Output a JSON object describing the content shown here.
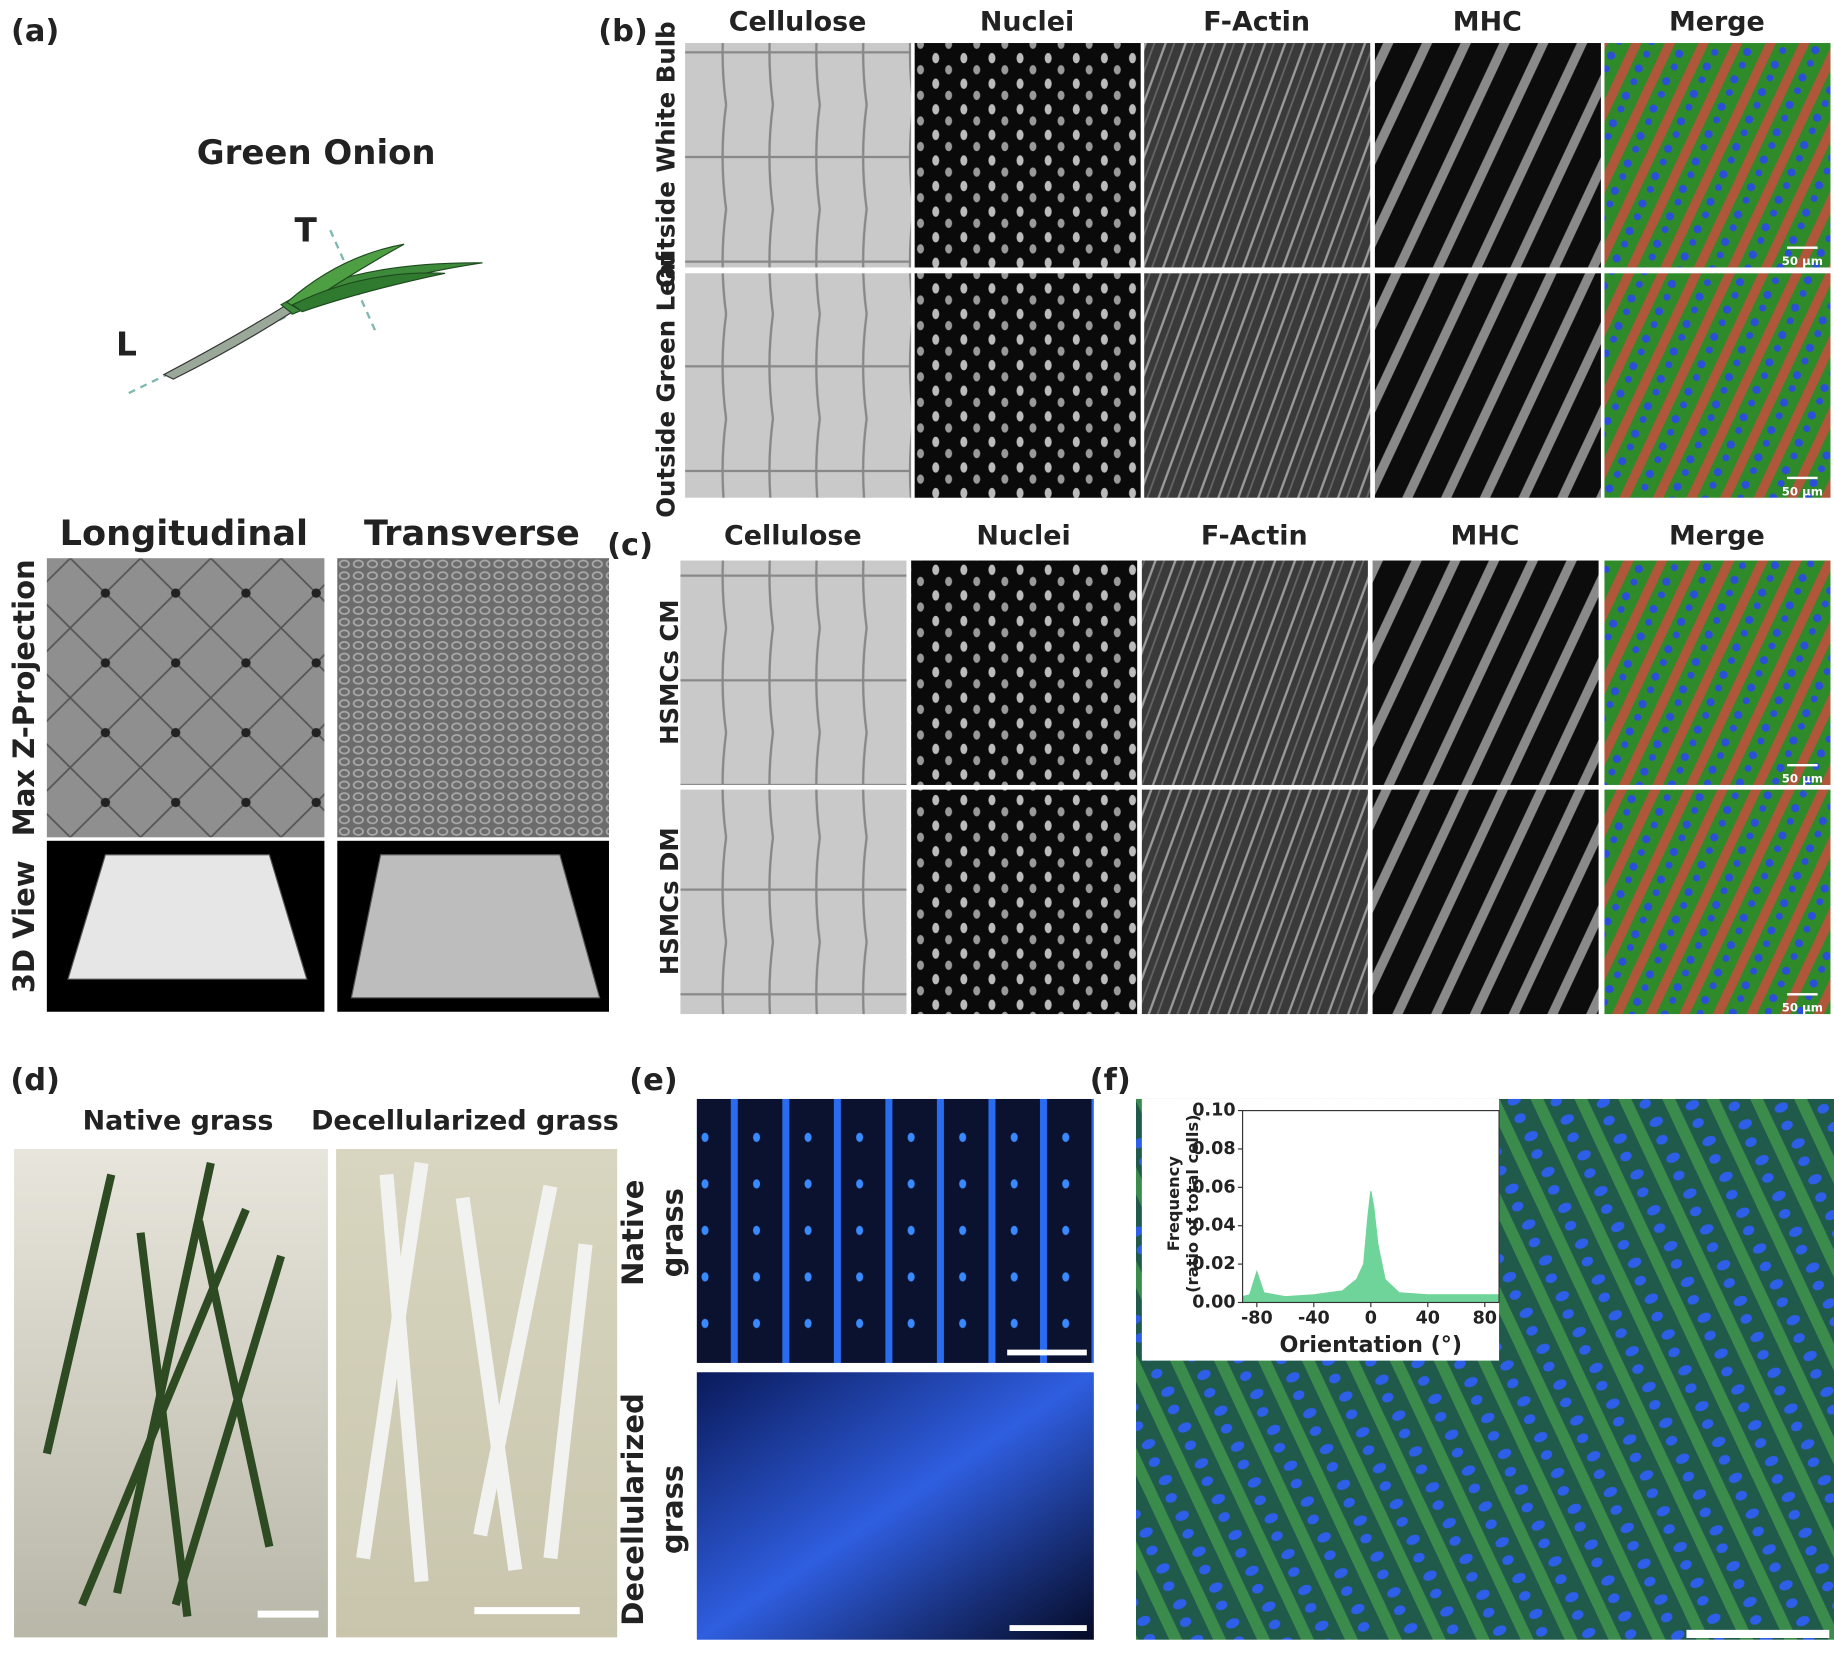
{
  "panels": {
    "a": {
      "label": "(a)",
      "title": "Green Onion",
      "axis_marks": [
        "T",
        "L"
      ],
      "columns": [
        "Longitudinal",
        "Transverse"
      ],
      "rows": [
        "Max Z-Projection",
        "3D View"
      ]
    },
    "b": {
      "label": "(b)",
      "columns": [
        "Cellulose",
        "Nuclei",
        "F-Actin",
        "MHC",
        "Merge"
      ],
      "rows": [
        "Outside White Bulb",
        "Outside Green Leaf"
      ],
      "scale_bar": "50 µm"
    },
    "c": {
      "label": "(c)",
      "columns": [
        "Cellulose",
        "Nuclei",
        "F-Actin",
        "MHC",
        "Merge"
      ],
      "rows": [
        "HSMCs CM",
        "HSMCs DM"
      ],
      "scale_bar": "50 µm"
    },
    "d": {
      "label": "(d)",
      "columns": [
        "Native grass",
        "Decellularized grass"
      ]
    },
    "e": {
      "label": "(e)",
      "rows": [
        [
          "Native",
          "grass"
        ],
        [
          "Decellularized",
          "grass"
        ]
      ]
    },
    "f": {
      "label": "(f)"
    }
  },
  "chart_data": {
    "type": "area",
    "color": "#6fd49a",
    "x": [
      -90,
      -85,
      -80,
      -75,
      -60,
      -40,
      -20,
      -10,
      -5,
      -2,
      0,
      2,
      5,
      10,
      20,
      40,
      60,
      80,
      90
    ],
    "values": [
      0.003,
      0.004,
      0.016,
      0.005,
      0.003,
      0.004,
      0.006,
      0.012,
      0.02,
      0.045,
      0.058,
      0.05,
      0.03,
      0.012,
      0.005,
      0.004,
      0.004,
      0.004,
      0.004
    ],
    "xlim": [
      -90,
      90
    ],
    "ylim": [
      0,
      0.1
    ],
    "xticks": [
      -80,
      -40,
      0,
      40,
      80
    ],
    "yticks": [
      {
        "value": 0,
        "label": "0.00"
      },
      0.02,
      0.04,
      0.06,
      0.08,
      {
        "value": 0.1,
        "label": "0.10"
      }
    ],
    "x_label": "Orientation (°)",
    "y_label": [
      "Frequency",
      "(ratio of total cells)"
    ]
  }
}
